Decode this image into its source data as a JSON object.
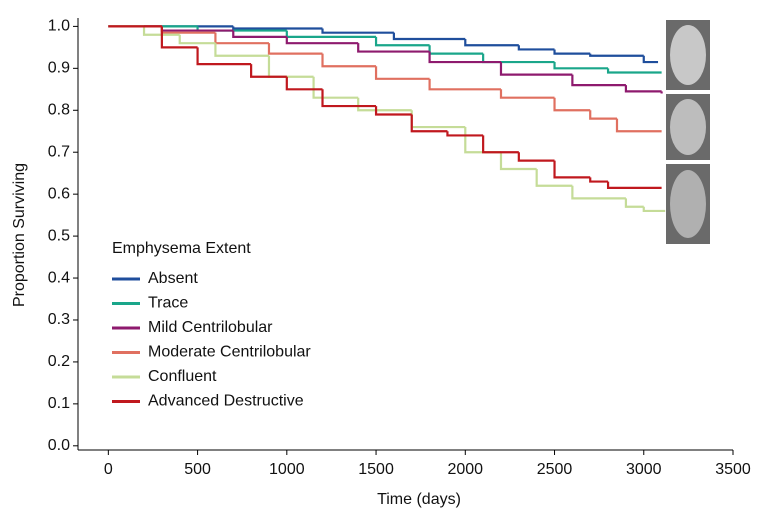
{
  "chart_data": {
    "type": "step",
    "xlabel": "Time (days)",
    "ylabel": "Proportion Surviving",
    "legend_title": "Emphysema Extent",
    "legend": "lower left",
    "xlim": [
      -170,
      3500
    ],
    "ylim": [
      -0.01,
      1.02
    ],
    "xticks": [
      0,
      500,
      1000,
      1500,
      2000,
      2500,
      3000,
      3500
    ],
    "yticks": [
      {
        "value": 0,
        "label": "0.0"
      },
      0.1,
      0.2,
      0.3,
      0.4,
      0.5,
      0.6,
      0.7,
      0.8,
      0.9,
      {
        "value": 1,
        "label": "1.0"
      }
    ],
    "series": [
      {
        "name": "Absent",
        "color": "#1f4e9c",
        "x": [
          0,
          700,
          1200,
          1600,
          2000,
          2300,
          2500,
          2700,
          3000,
          3080
        ],
        "values": [
          1.0,
          0.995,
          0.985,
          0.97,
          0.955,
          0.945,
          0.935,
          0.93,
          0.915,
          0.915
        ]
      },
      {
        "name": "Trace",
        "color": "#1aa68a",
        "x": [
          0,
          500,
          1000,
          1500,
          1800,
          2100,
          2500,
          2800,
          3100
        ],
        "values": [
          1.0,
          0.99,
          0.975,
          0.955,
          0.935,
          0.915,
          0.9,
          0.89,
          0.89
        ]
      },
      {
        "name": "Mild Centrilobular",
        "color": "#8e1a6e",
        "x": [
          0,
          300,
          700,
          1000,
          1400,
          1800,
          2200,
          2600,
          2900,
          3100
        ],
        "values": [
          1.0,
          0.99,
          0.975,
          0.96,
          0.94,
          0.915,
          0.885,
          0.86,
          0.845,
          0.84
        ]
      },
      {
        "name": "Moderate Centrilobular",
        "color": "#e07060",
        "x": [
          0,
          300,
          600,
          900,
          1200,
          1500,
          1800,
          2200,
          2500,
          2700,
          2850,
          3100
        ],
        "values": [
          1.0,
          0.985,
          0.96,
          0.935,
          0.905,
          0.875,
          0.85,
          0.83,
          0.8,
          0.78,
          0.75,
          0.75
        ]
      },
      {
        "name": "Confluent",
        "color": "#c5dc98",
        "x": [
          0,
          200,
          400,
          600,
          900,
          1150,
          1400,
          1700,
          2000,
          2200,
          2400,
          2600,
          2900,
          3000,
          3120
        ],
        "values": [
          1.0,
          0.98,
          0.96,
          0.93,
          0.88,
          0.83,
          0.8,
          0.76,
          0.7,
          0.66,
          0.62,
          0.59,
          0.57,
          0.56,
          0.56
        ]
      },
      {
        "name": "Advanced Destructive",
        "color": "#c0181e",
        "x": [
          0,
          300,
          500,
          800,
          1000,
          1200,
          1500,
          1700,
          1900,
          2100,
          2300,
          2500,
          2700,
          2800,
          3100
        ],
        "values": [
          1.0,
          0.95,
          0.91,
          0.88,
          0.85,
          0.81,
          0.79,
          0.75,
          0.74,
          0.7,
          0.68,
          0.64,
          0.63,
          0.615,
          0.615
        ]
      }
    ]
  }
}
